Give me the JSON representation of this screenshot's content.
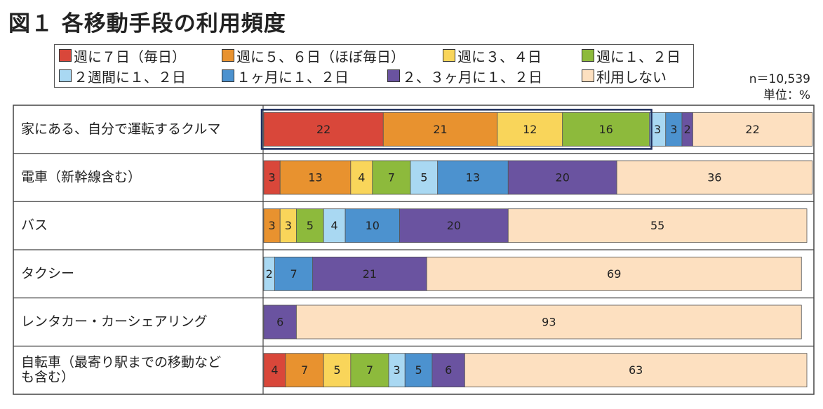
{
  "title": "図１ 各移動手段の利用頻度",
  "n_note": "n＝10,539",
  "unit_note": "単位：%",
  "chart_data": {
    "type": "bar",
    "orientation": "horizontal",
    "stacked": true,
    "percent_scale": true,
    "xlim": [
      0,
      100
    ],
    "categories": [
      "家にある、自分で運転するクルマ",
      "電車（新幹線含む）",
      "バス",
      "タクシー",
      "レンタカー・カーシェアリング",
      "自転車（最寄り駅までの移動なども含む）"
    ],
    "category_labels": [
      [
        "家にある、自分で運転するクルマ"
      ],
      [
        "電車（新幹線含む）"
      ],
      [
        "バス"
      ],
      [
        "タクシー"
      ],
      [
        "レンタカー・カーシェアリング"
      ],
      [
        "自転車（最寄り駅までの移動など",
        "も含む）"
      ]
    ],
    "series": [
      {
        "name": "週に７日（毎日）",
        "color": "#d9473a",
        "values": [
          22,
          3,
          0,
          0,
          0,
          4
        ]
      },
      {
        "name": "週に５、６日（ほぼ毎日）",
        "color": "#e8922f",
        "values": [
          21,
          13,
          3,
          0,
          0,
          7
        ]
      },
      {
        "name": "週に３、４日",
        "color": "#f9d55a",
        "values": [
          12,
          4,
          3,
          0,
          0,
          5
        ]
      },
      {
        "name": "週に１、２日",
        "color": "#8dba3c",
        "values": [
          16,
          7,
          5,
          0,
          0,
          7
        ]
      },
      {
        "name": "２週間に１、２日",
        "color": "#a9d8f2",
        "values": [
          3,
          5,
          4,
          2,
          0,
          3
        ]
      },
      {
        "name": "１ヶ月に１、２日",
        "color": "#4c92cf",
        "values": [
          3,
          13,
          10,
          7,
          0,
          5
        ]
      },
      {
        "name": "２、３ヶ月に１、２日",
        "color": "#6a53a0",
        "values": [
          2,
          20,
          20,
          21,
          6,
          6
        ]
      },
      {
        "name": "利用しない",
        "color": "#fde0c0",
        "values": [
          22,
          36,
          55,
          69,
          93,
          63
        ]
      }
    ],
    "highlight": {
      "category": "家にある、自分で運転するクルマ",
      "series_range": [
        "週に７日（毎日）",
        "週に１、２日"
      ]
    }
  }
}
